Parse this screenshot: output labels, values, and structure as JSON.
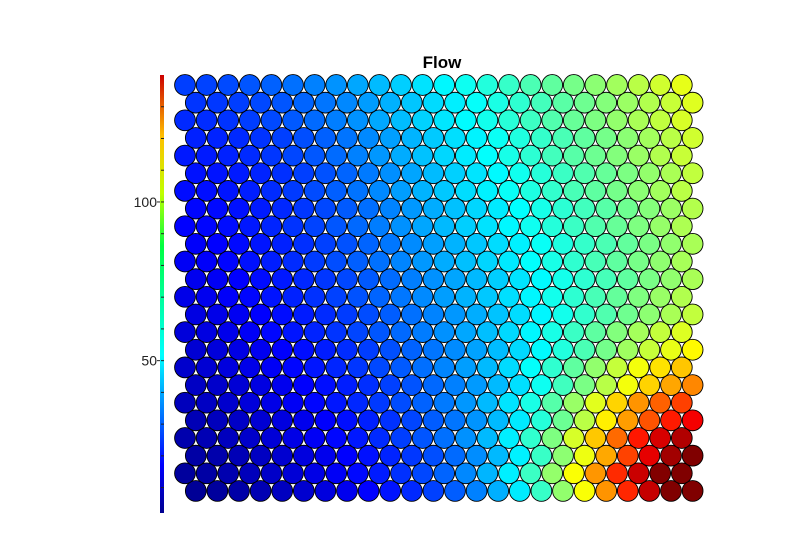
{
  "chart_data": {
    "type": "heatmap",
    "subtype": "som-hexagonal-component-plane",
    "title": "Flow",
    "xlabel": "",
    "ylabel": "",
    "grid": {
      "columns": 24,
      "rows": 24,
      "cell_shape": "circle",
      "layout": "hexagonal",
      "odd_rows_offset": "right"
    },
    "colorbar": {
      "placement": "left",
      "colormap": "jet",
      "range": [
        2,
        140
      ],
      "ticks": [
        {
          "value": 50,
          "label": "50"
        },
        {
          "value": 100,
          "label": "100"
        }
      ]
    },
    "value_field": {
      "description_free": true,
      "base": 5,
      "x_gain": 56,
      "y_gain": 24,
      "x_exp": 1.3,
      "hotspot_gain": 85,
      "hotspot_x": 23,
      "hotspot_y": 0,
      "hotspot_sigma": 4.2,
      "top_left_dip": -4
    }
  }
}
